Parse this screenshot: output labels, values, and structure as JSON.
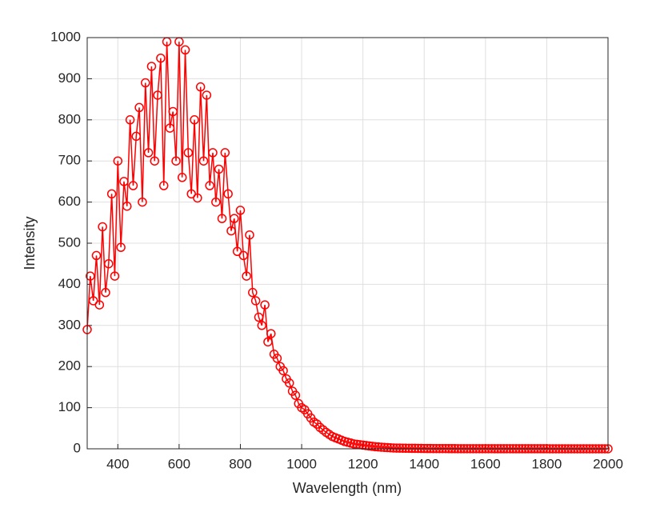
{
  "chart_data": {
    "type": "line",
    "xlabel": "Wavelength (nm)",
    "ylabel": "Intensity",
    "x": [
      300,
      310,
      320,
      330,
      340,
      350,
      360,
      370,
      380,
      390,
      400,
      410,
      420,
      430,
      440,
      450,
      460,
      470,
      480,
      490,
      500,
      510,
      520,
      530,
      540,
      550,
      560,
      570,
      580,
      590,
      600,
      610,
      620,
      630,
      640,
      650,
      660,
      670,
      680,
      690,
      700,
      710,
      720,
      730,
      740,
      750,
      760,
      770,
      780,
      790,
      800,
      810,
      820,
      830,
      840,
      850,
      860,
      870,
      880,
      890,
      900,
      910,
      920,
      930,
      940,
      950,
      960,
      970,
      980,
      990,
      1000,
      1010,
      1020,
      1030,
      1040,
      1050,
      1060,
      1070,
      1080,
      1090,
      1100,
      1110,
      1120,
      1130,
      1140,
      1150,
      1160,
      1170,
      1180,
      1190,
      1200,
      1210,
      1220,
      1230,
      1240,
      1250,
      1260,
      1270,
      1280,
      1290,
      1300,
      1310,
      1320,
      1330,
      1340,
      1350,
      1360,
      1370,
      1380,
      1390,
      1400,
      1410,
      1420,
      1430,
      1440,
      1450,
      1460,
      1470,
      1480,
      1490,
      1500,
      1510,
      1520,
      1530,
      1540,
      1550,
      1560,
      1570,
      1580,
      1590,
      1600,
      1610,
      1620,
      1630,
      1640,
      1650,
      1660,
      1670,
      1680,
      1690,
      1700,
      1710,
      1720,
      1730,
      1740,
      1750,
      1760,
      1770,
      1780,
      1790,
      1800,
      1810,
      1820,
      1830,
      1840,
      1850,
      1860,
      1870,
      1880,
      1890,
      1900,
      1910,
      1920,
      1930,
      1940,
      1950,
      1960,
      1970,
      1980,
      1990,
      2000
    ],
    "series": [
      {
        "color": "#ff0000",
        "values": [
          290,
          420,
          360,
          470,
          350,
          540,
          380,
          450,
          620,
          420,
          700,
          490,
          650,
          590,
          800,
          640,
          760,
          830,
          600,
          890,
          720,
          930,
          700,
          860,
          950,
          640,
          990,
          780,
          820,
          700,
          990,
          660,
          970,
          720,
          620,
          800,
          610,
          880,
          700,
          860,
          640,
          720,
          600,
          680,
          560,
          720,
          620,
          530,
          560,
          480,
          580,
          470,
          420,
          520,
          380,
          360,
          320,
          300,
          350,
          260,
          280,
          230,
          220,
          200,
          190,
          170,
          160,
          140,
          130,
          110,
          100,
          95,
          85,
          75,
          65,
          60,
          52,
          46,
          40,
          35,
          30,
          27,
          24,
          21,
          18,
          16,
          14,
          12,
          11,
          10,
          9,
          8,
          7,
          6,
          5,
          4.5,
          4,
          3.5,
          3,
          2.5,
          2,
          1.8,
          1.6,
          1.5,
          1.4,
          1.3,
          1.2,
          1.1,
          1.0,
          0.9,
          0.8,
          0.7,
          0.7,
          0.6,
          0.6,
          0.5,
          0.5,
          0.5,
          0.4,
          0.4,
          0.4,
          0.3,
          0.3,
          0.3,
          0.3,
          0.3,
          0.3,
          0.3,
          0.3,
          0.3,
          0.3,
          0.3,
          0.3,
          0.2,
          0.2,
          0.2,
          0.2,
          0.2,
          0.2,
          0.2,
          0.2,
          0.2,
          0.2,
          0.2,
          0.2,
          0.2,
          0.2,
          0.2,
          0.2,
          0.2,
          0.2,
          0.1,
          0.1,
          0.1,
          0.1,
          0.1,
          0.1,
          0.1,
          0.1,
          0.1,
          0.1,
          0.1,
          0.1,
          0.1,
          0.1,
          0.1,
          0.1,
          0.1,
          0.1,
          0.1,
          0.1
        ]
      }
    ],
    "xlim": [
      300,
      2000
    ],
    "xticks": [
      400,
      600,
      800,
      1000,
      1200,
      1400,
      1600,
      1800,
      2000
    ],
    "ylim": [
      0,
      1000
    ],
    "yticks": [
      0,
      100,
      200,
      300,
      400,
      500,
      600,
      700,
      800,
      900,
      1000
    ],
    "grid": true
  }
}
